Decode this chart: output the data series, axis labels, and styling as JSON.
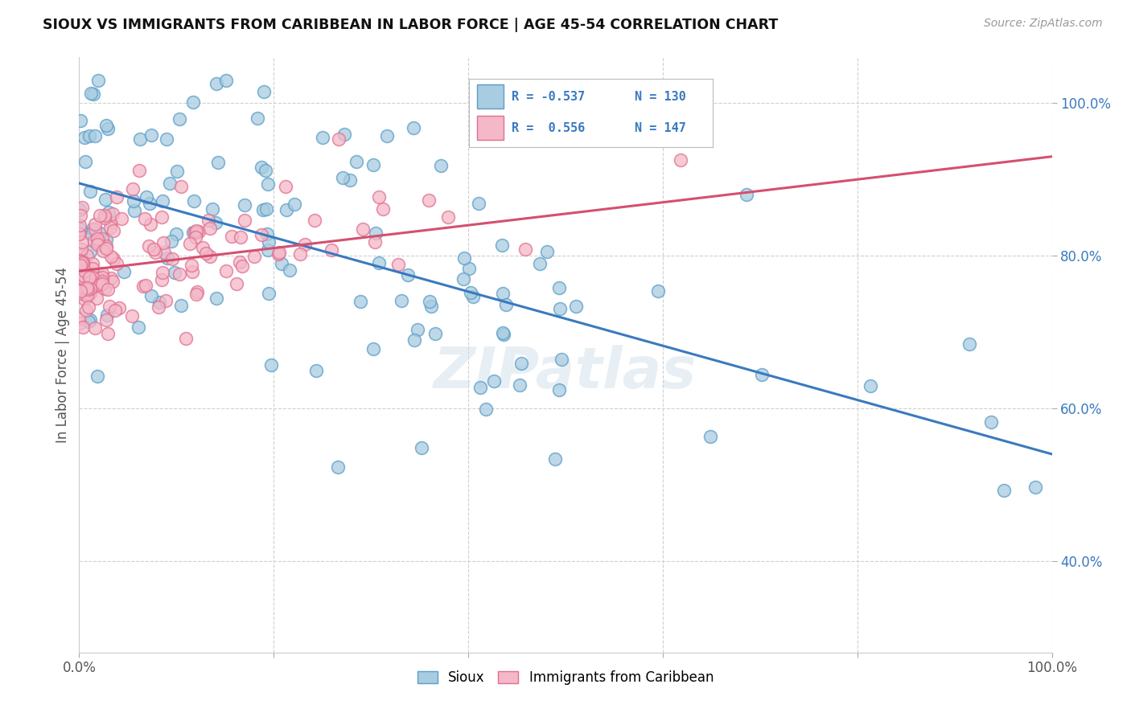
{
  "title": "SIOUX VS IMMIGRANTS FROM CARIBBEAN IN LABOR FORCE | AGE 45-54 CORRELATION CHART",
  "source": "Source: ZipAtlas.com",
  "ylabel": "In Labor Force | Age 45-54",
  "xlim": [
    0.0,
    1.0
  ],
  "ylim": [
    0.28,
    1.06
  ],
  "xticks": [
    0.0,
    0.2,
    0.4,
    0.6,
    0.8,
    1.0
  ],
  "xticklabels": [
    "0.0%",
    "",
    "",
    "",
    "",
    "100.0%"
  ],
  "ytick_positions": [
    0.4,
    0.6,
    0.8,
    1.0
  ],
  "ytick_labels": [
    "40.0%",
    "60.0%",
    "80.0%",
    "100.0%"
  ],
  "blue_R": -0.537,
  "blue_N": 130,
  "pink_R": 0.556,
  "pink_N": 147,
  "blue_color": "#a8cce0",
  "pink_color": "#f4b8c8",
  "blue_edge_color": "#5b9ec9",
  "pink_edge_color": "#e07090",
  "blue_line_color": "#3a7abf",
  "pink_line_color": "#d45070",
  "legend_label_blue": "Sioux",
  "legend_label_pink": "Immigrants from Caribbean",
  "watermark": "ZIPatlas",
  "background_color": "#ffffff",
  "grid_color": "#d0d0d0",
  "blue_line_start_y": 0.895,
  "blue_line_end_y": 0.54,
  "pink_line_start_y": 0.78,
  "pink_line_end_y": 0.93
}
